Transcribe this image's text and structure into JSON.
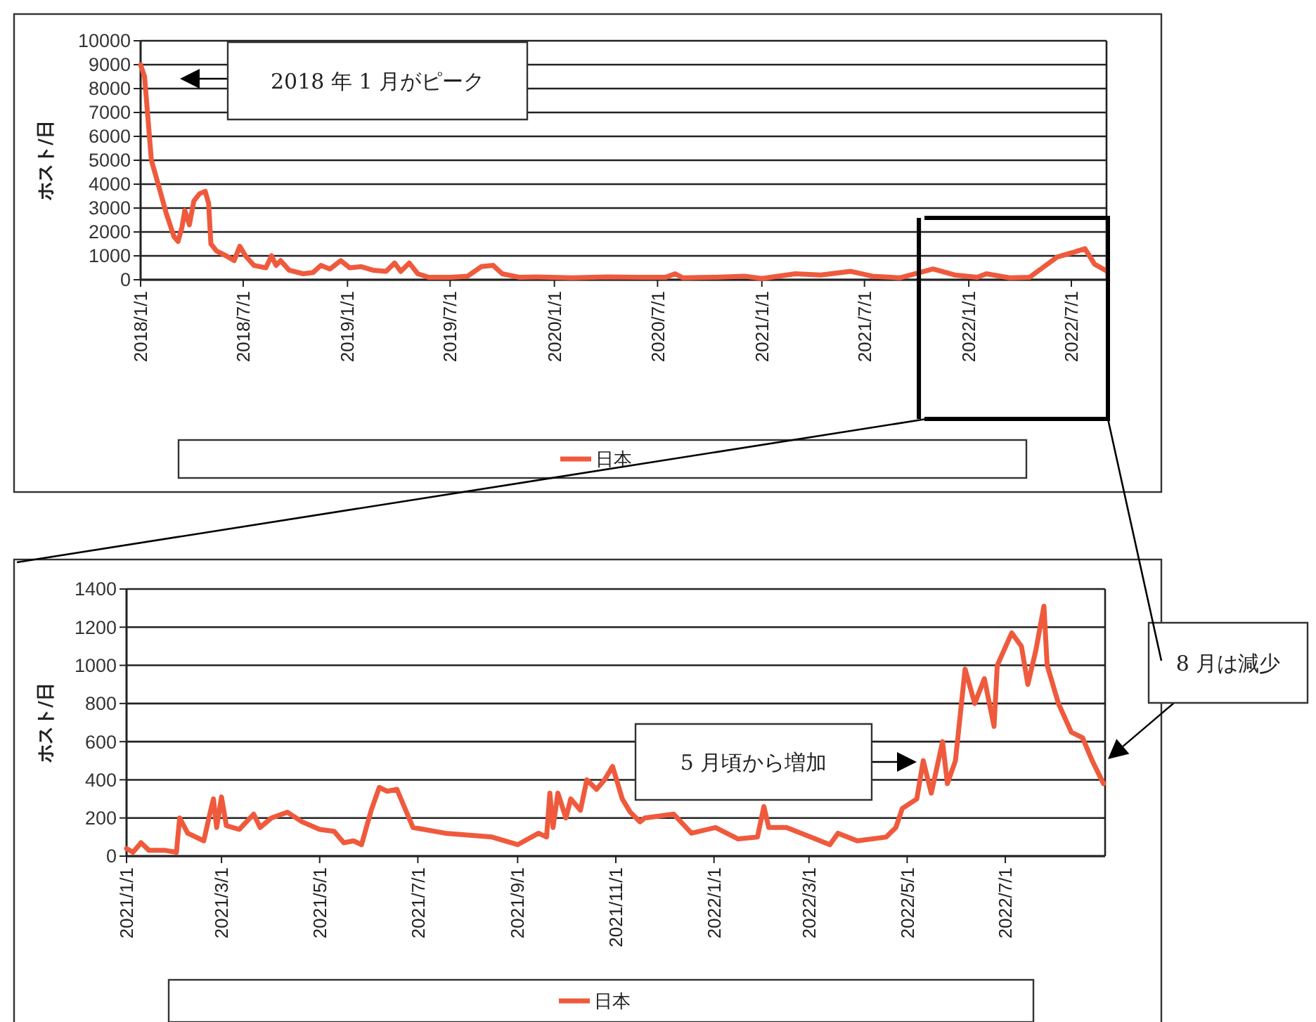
{
  "chart_data": [
    {
      "type": "line",
      "ylabel": "ホスト/日",
      "xlim": [
        "2018-01-01",
        "2022-09-01"
      ],
      "ylim": [
        0,
        10000
      ],
      "yticks": [
        0,
        1000,
        2000,
        3000,
        4000,
        5000,
        6000,
        7000,
        8000,
        9000,
        10000
      ],
      "xticks": [
        {
          "value": "2018-01-01",
          "label": "2018/1/1"
        },
        {
          "value": "2018-07-01",
          "label": "2018/7/1"
        },
        {
          "value": "2019-01-01",
          "label": "2019/1/1"
        },
        {
          "value": "2019-07-01",
          "label": "2019/7/1"
        },
        {
          "value": "2020-01-01",
          "label": "2020/1/1"
        },
        {
          "value": "2020-07-01",
          "label": "2020/7/1"
        },
        {
          "value": "2021-01-01",
          "label": "2021/1/1"
        },
        {
          "value": "2021-07-01",
          "label": "2021/7/1"
        },
        {
          "value": "2022-01-01",
          "label": "2022/1/1"
        },
        {
          "value": "2022-07-01",
          "label": "2022/7/1"
        }
      ],
      "grid": "y",
      "legend": "bottom",
      "line_style": "solid",
      "annotations": [
        "2018 年 1 月がピーク"
      ],
      "ref_lines": [
        {
          "axis": "x",
          "value": "2021-10-05",
          "color": "#000000"
        }
      ],
      "x": [
        "2018-01-01",
        "2018-01-08",
        "2018-01-20",
        "2018-02-01",
        "2018-02-15",
        "2018-03-01",
        "2018-03-08",
        "2018-03-15",
        "2018-03-20",
        "2018-03-28",
        "2018-04-05",
        "2018-04-15",
        "2018-04-25",
        "2018-05-01",
        "2018-05-05",
        "2018-05-15",
        "2018-06-01",
        "2018-06-15",
        "2018-06-25",
        "2018-07-05",
        "2018-07-20",
        "2018-08-10",
        "2018-08-20",
        "2018-08-28",
        "2018-09-05",
        "2018-09-20",
        "2018-10-15",
        "2018-11-01",
        "2018-11-15",
        "2018-12-01",
        "2018-12-20",
        "2019-01-05",
        "2019-01-25",
        "2019-02-15",
        "2019-03-10",
        "2019-03-25",
        "2019-04-05",
        "2019-04-20",
        "2019-05-05",
        "2019-05-25",
        "2019-07-01",
        "2019-08-01",
        "2019-08-25",
        "2019-09-15",
        "2019-10-01",
        "2019-11-01",
        "2019-12-01",
        "2020-02-01",
        "2020-04-01",
        "2020-06-01",
        "2020-07-15",
        "2020-08-01",
        "2020-08-15",
        "2020-10-01",
        "2020-12-01",
        "2021-01-01",
        "2021-03-01",
        "2021-04-15",
        "2021-06-07",
        "2021-07-15",
        "2021-09-01",
        "2021-10-30",
        "2021-12-07",
        "2022-01-16",
        "2022-02-01",
        "2022-03-14",
        "2022-04-18",
        "2022-05-11",
        "2022-06-06",
        "2022-07-05",
        "2022-07-25",
        "2022-08-11",
        "2022-08-31"
      ],
      "series": [
        {
          "name": "日本",
          "color": "#ef5a3d",
          "values": [
            9000,
            8500,
            5000,
            4000,
            2800,
            1800,
            1600,
            2200,
            2900,
            2300,
            3300,
            3600,
            3700,
            3200,
            1500,
            1200,
            1000,
            800,
            1400,
            1000,
            600,
            500,
            1000,
            600,
            800,
            400,
            250,
            300,
            600,
            450,
            800,
            500,
            550,
            400,
            350,
            700,
            350,
            700,
            250,
            100,
            100,
            150,
            550,
            600,
            250,
            100,
            120,
            80,
            120,
            100,
            100,
            250,
            80,
            100,
            150,
            50,
            250,
            200,
            350,
            150,
            80,
            450,
            200,
            100,
            250,
            80,
            100,
            500,
            950,
            1150,
            1300,
            650,
            380
          ]
        }
      ]
    },
    {
      "type": "line",
      "ylabel": "ホスト/日",
      "xlim": [
        "2021-01-01",
        "2022-09-01"
      ],
      "ylim": [
        0,
        1400
      ],
      "yticks": [
        0,
        200,
        400,
        600,
        800,
        1000,
        1200,
        1400
      ],
      "xticks": [
        {
          "value": "2021-01-01",
          "label": "2021/1/1"
        },
        {
          "value": "2021-03-01",
          "label": "2021/3/1"
        },
        {
          "value": "2021-05-01",
          "label": "2021/5/1"
        },
        {
          "value": "2021-07-01",
          "label": "2021/7/1"
        },
        {
          "value": "2021-09-01",
          "label": "2021/9/1"
        },
        {
          "value": "2021-11-01",
          "label": "2021/11/1"
        },
        {
          "value": "2022-01-01",
          "label": "2022/1/1"
        },
        {
          "value": "2022-03-01",
          "label": "2022/3/1"
        },
        {
          "value": "2022-05-01",
          "label": "2022/5/1"
        },
        {
          "value": "2022-07-01",
          "label": "2022/7/1"
        }
      ],
      "grid": "y",
      "legend": "bottom",
      "line_style": "solid",
      "annotations": [
        "5 月頃から増加",
        "8 月は減少"
      ],
      "x": [
        "2021-01-01",
        "2021-01-05",
        "2021-01-10",
        "2021-01-15",
        "2021-01-25",
        "2021-02-01",
        "2021-02-03",
        "2021-02-08",
        "2021-02-18",
        "2021-02-22",
        "2021-02-24",
        "2021-02-26",
        "2021-03-01",
        "2021-03-04",
        "2021-03-12",
        "2021-03-21",
        "2021-03-25",
        "2021-04-01",
        "2021-04-11",
        "2021-04-20",
        "2021-05-01",
        "2021-05-10",
        "2021-05-16",
        "2021-05-22",
        "2021-05-27",
        "2021-06-02",
        "2021-06-07",
        "2021-06-12",
        "2021-06-18",
        "2021-06-28",
        "2021-07-18",
        "2021-08-16",
        "2021-09-01",
        "2021-09-14",
        "2021-09-19",
        "2021-09-21",
        "2021-09-23",
        "2021-09-26",
        "2021-10-01",
        "2021-10-04",
        "2021-10-10",
        "2021-10-14",
        "2021-10-20",
        "2021-10-25",
        "2021-10-30",
        "2021-11-05",
        "2021-11-10",
        "2021-11-16",
        "2021-11-19",
        "2021-12-07",
        "2021-12-18",
        "2022-01-02",
        "2022-01-16",
        "2022-01-28",
        "2022-02-01",
        "2022-02-04",
        "2022-02-15",
        "2022-03-02",
        "2022-03-14",
        "2022-03-19",
        "2022-03-31",
        "2022-04-18",
        "2022-04-24",
        "2022-04-28",
        "2022-05-07",
        "2022-05-11",
        "2022-05-16",
        "2022-05-23",
        "2022-05-26",
        "2022-05-31",
        "2022-06-06",
        "2022-06-12",
        "2022-06-18",
        "2022-06-24",
        "2022-06-26",
        "2022-07-05",
        "2022-07-11",
        "2022-07-15",
        "2022-07-20",
        "2022-07-25",
        "2022-07-27",
        "2022-08-03",
        "2022-08-11",
        "2022-08-18",
        "2022-08-24",
        "2022-08-31"
      ],
      "series": [
        {
          "name": "日本",
          "color": "#ef5a3d",
          "values": [
            40,
            20,
            70,
            30,
            30,
            20,
            200,
            120,
            80,
            230,
            300,
            150,
            310,
            160,
            140,
            220,
            150,
            200,
            230,
            180,
            140,
            130,
            70,
            80,
            60,
            240,
            360,
            340,
            350,
            150,
            120,
            100,
            60,
            120,
            100,
            330,
            150,
            330,
            200,
            300,
            240,
            400,
            350,
            400,
            470,
            300,
            230,
            180,
            200,
            220,
            120,
            150,
            90,
            100,
            260,
            150,
            150,
            100,
            60,
            120,
            80,
            100,
            150,
            250,
            300,
            500,
            330,
            600,
            380,
            500,
            980,
            800,
            930,
            680,
            1000,
            1170,
            1100,
            900,
            1080,
            1310,
            1000,
            800,
            650,
            620,
            500,
            380
          ]
        }
      ]
    }
  ]
}
